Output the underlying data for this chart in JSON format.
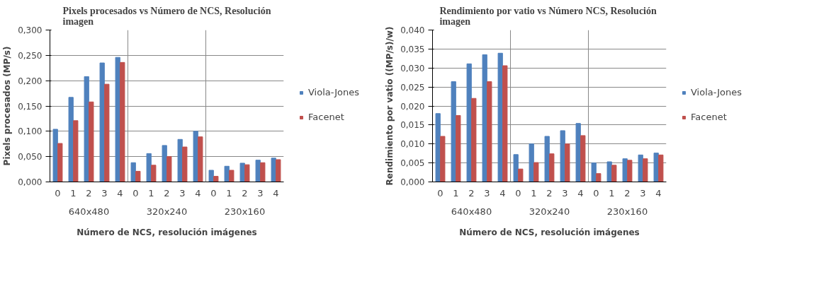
{
  "chart_data": [
    {
      "type": "bar",
      "title": "Pixels procesados vs Número de NCS, Resolución imagen",
      "xlabel": "Número de NCS, resolución imágenes",
      "ylabel": "Pixels procesados (MP/s)",
      "categories": [
        "0",
        "1",
        "2",
        "3",
        "4",
        "0",
        "1",
        "2",
        "3",
        "4",
        "0",
        "1",
        "2",
        "3",
        "4"
      ],
      "annotations": [
        "640x480",
        "320x240",
        "230x160"
      ],
      "series": [
        {
          "name": "Viola-Jones",
          "color": "#4f81bd",
          "values": [
            0.104,
            0.167,
            0.208,
            0.235,
            0.246,
            0.038,
            0.056,
            0.072,
            0.084,
            0.1,
            0.023,
            0.031,
            0.037,
            0.043,
            0.047
          ]
        },
        {
          "name": "Facenet",
          "color": "#c0504d",
          "values": [
            0.076,
            0.121,
            0.158,
            0.193,
            0.236,
            0.021,
            0.033,
            0.05,
            0.069,
            0.089,
            0.011,
            0.023,
            0.034,
            0.038,
            0.044
          ]
        }
      ],
      "ylim": [
        0,
        0.3
      ],
      "yticks": [
        {
          "value": 0,
          "label": "0,000"
        },
        {
          "value": 0.05,
          "label": "0,050"
        },
        {
          "value": 0.1,
          "label": "0,100"
        },
        {
          "value": 0.15,
          "label": "0,150"
        },
        {
          "value": 0.2,
          "label": "0,200"
        },
        {
          "value": 0.25,
          "label": "0,250"
        },
        {
          "value": 0.3,
          "label": "0,300"
        }
      ],
      "grid": "y",
      "legend": "right"
    },
    {
      "type": "bar",
      "title": "Rendimiento por vatio vs Número NCS,  Resolución imagen",
      "xlabel": "Número de NCS, resolución imágenes",
      "ylabel": "Rendimiento por vatio ((MP/s)/w)",
      "categories": [
        "0",
        "1",
        "2",
        "3",
        "4",
        "0",
        "1",
        "2",
        "3",
        "4",
        "0",
        "1",
        "2",
        "3",
        "4"
      ],
      "annotations": [
        "640x480",
        "320x240",
        "230x160"
      ],
      "series": [
        {
          "name": "Viola-Jones",
          "color": "#4f81bd",
          "values": [
            0.018,
            0.0264,
            0.0311,
            0.0335,
            0.0339,
            0.0072,
            0.01,
            0.012,
            0.0135,
            0.0154,
            0.005,
            0.0053,
            0.0061,
            0.0071,
            0.0076
          ]
        },
        {
          "name": "Facenet",
          "color": "#c0504d",
          "values": [
            0.012,
            0.0175,
            0.022,
            0.0264,
            0.0306,
            0.0034,
            0.0051,
            0.0074,
            0.01,
            0.0122,
            0.0022,
            0.0044,
            0.0057,
            0.0061,
            0.0071
          ]
        }
      ],
      "ylim": [
        0,
        0.04
      ],
      "yticks": [
        {
          "value": 0,
          "label": "0,000"
        },
        {
          "value": 0.005,
          "label": "0,005"
        },
        {
          "value": 0.01,
          "label": "0,010"
        },
        {
          "value": 0.015,
          "label": "0,015"
        },
        {
          "value": 0.02,
          "label": "0,020"
        },
        {
          "value": 0.025,
          "label": "0,025"
        },
        {
          "value": 0.03,
          "label": "0,030"
        },
        {
          "value": 0.035,
          "label": "0,035"
        },
        {
          "value": 0.04,
          "label": "0,040"
        }
      ],
      "grid": "y",
      "legend": "right"
    }
  ]
}
